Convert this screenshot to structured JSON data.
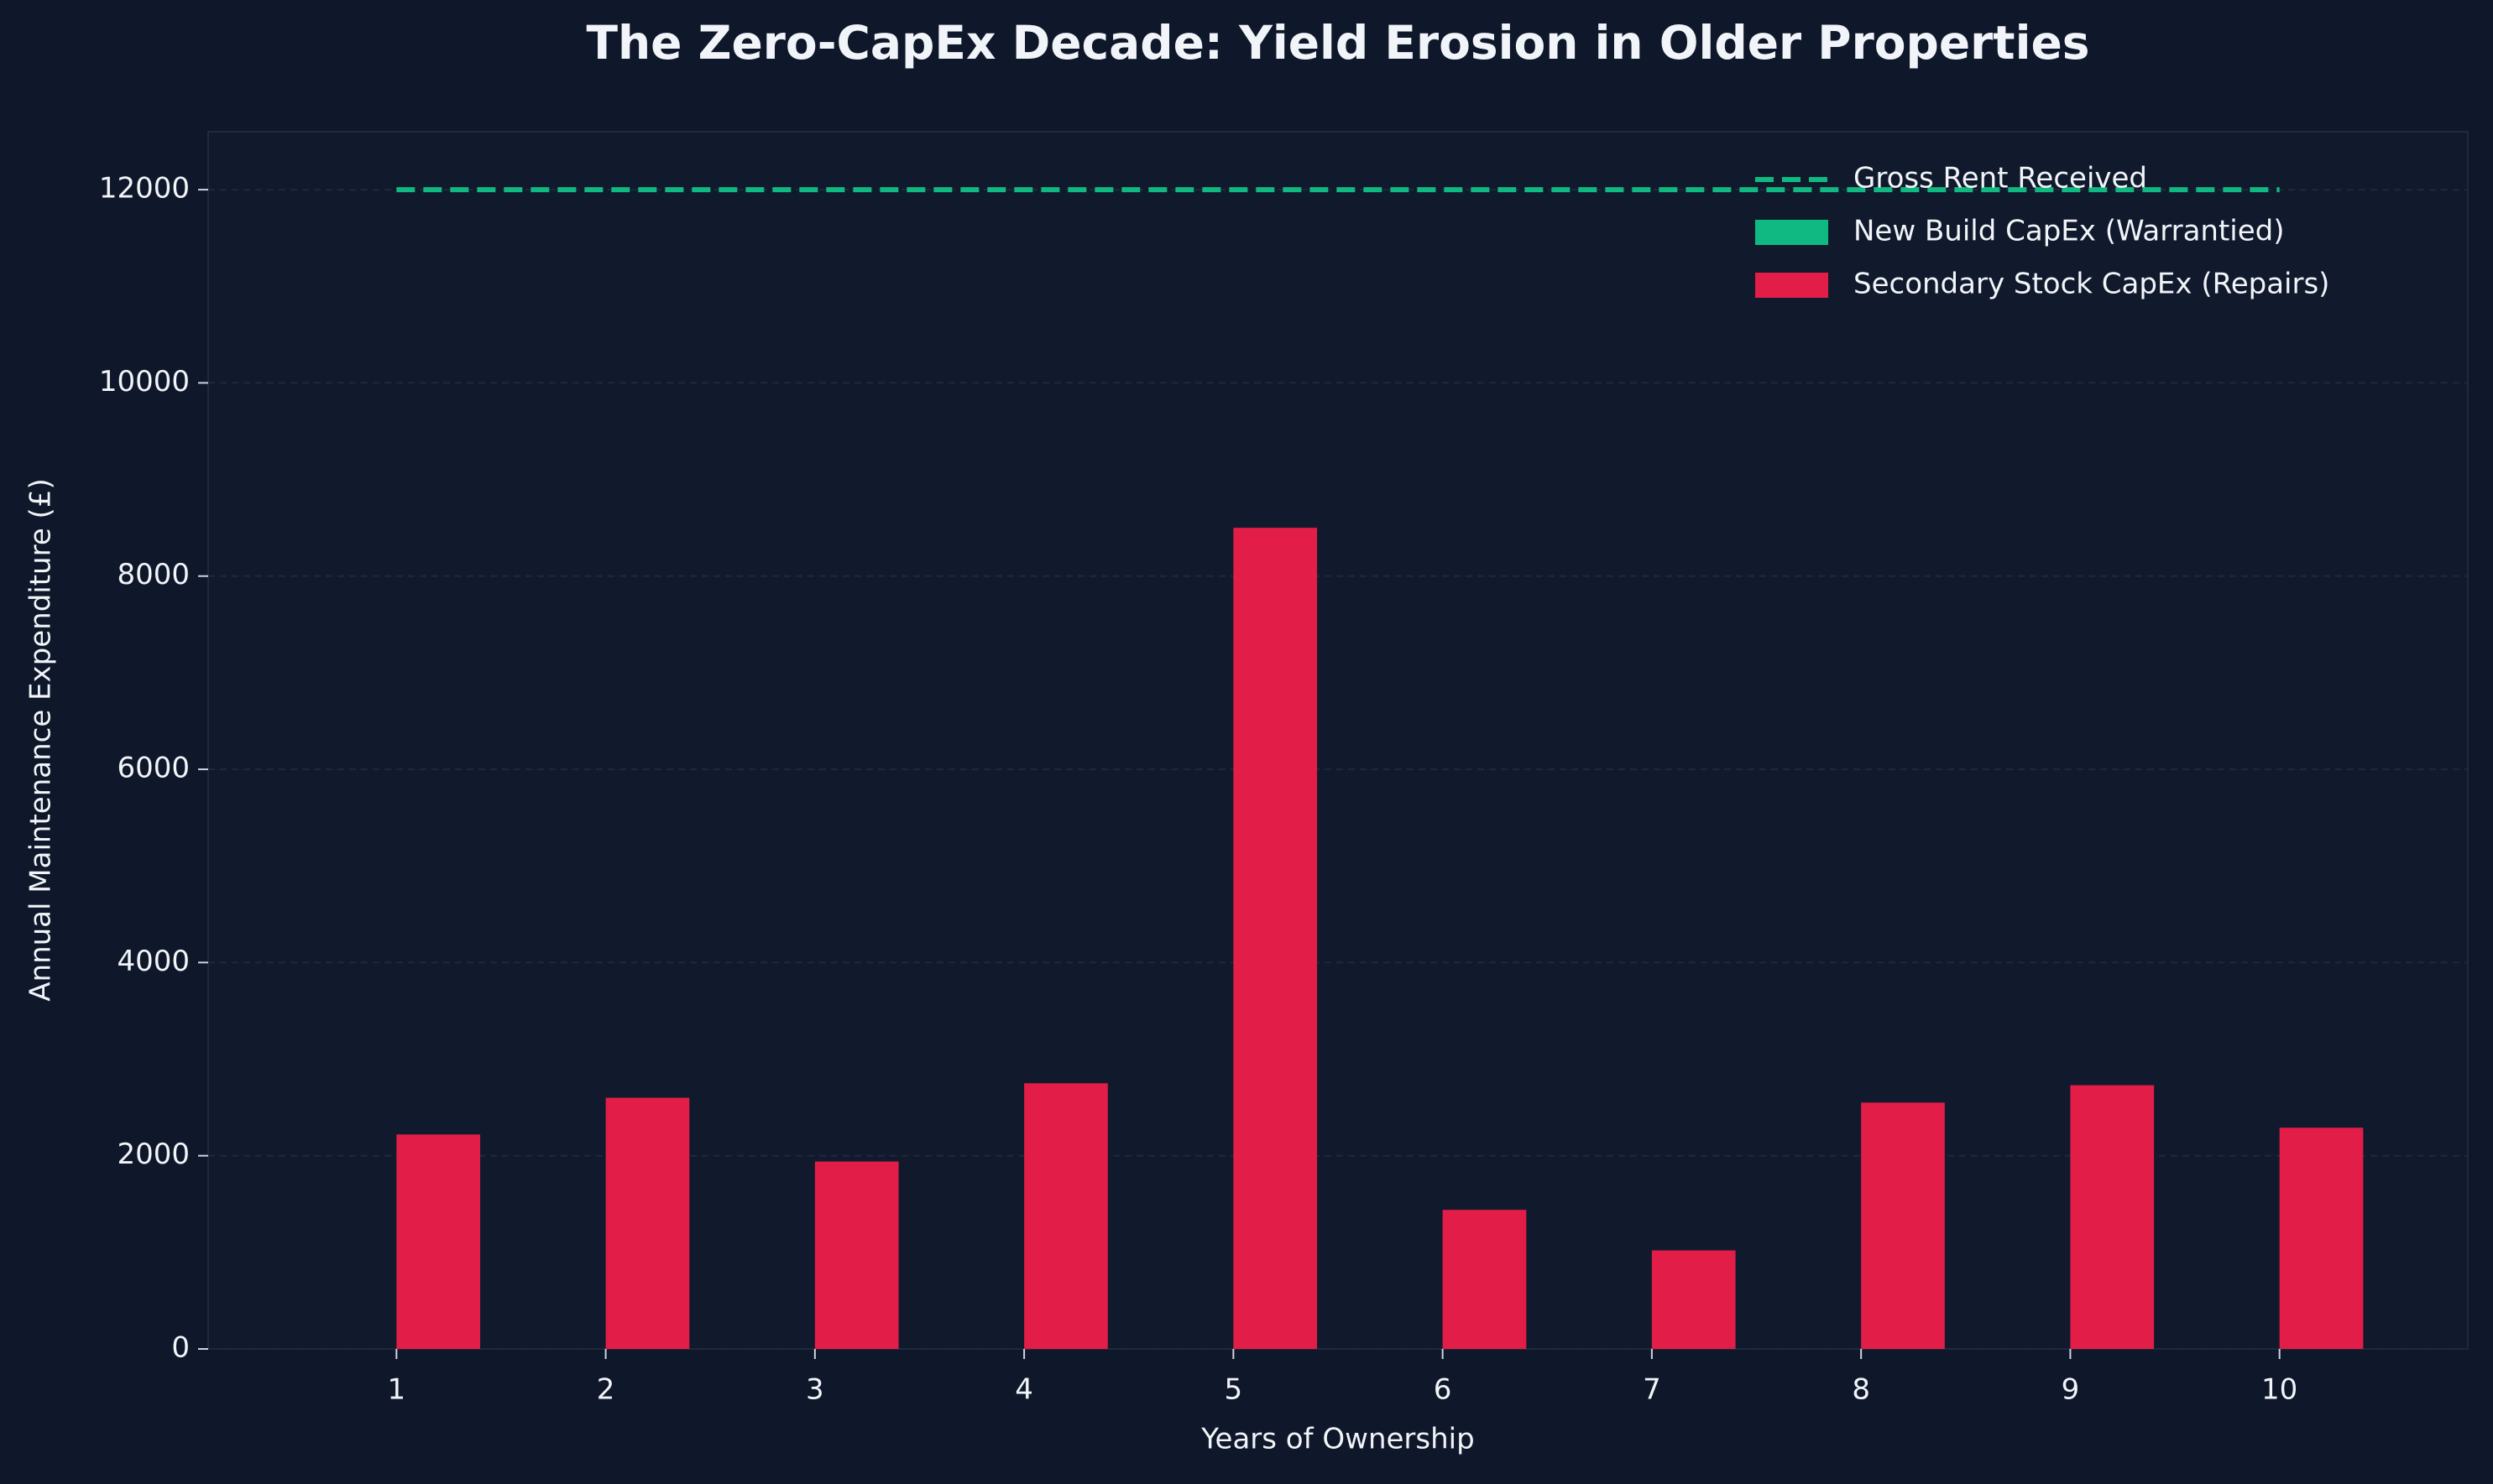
{
  "chart_data": {
    "type": "bar",
    "title": "The Zero-CapEx Decade: Yield Erosion in Older Properties",
    "x_label": "Years of Ownership",
    "y_label": "Annual Maintenance Expenditure (£)",
    "x": [
      1,
      2,
      3,
      4,
      5,
      6,
      7,
      8,
      9,
      10
    ],
    "series": [
      {
        "name": "Gross Rent Received",
        "type": "line",
        "color": "#10b981",
        "dashed": true,
        "values": [
          12000,
          12000,
          12000,
          12000,
          12000,
          12000,
          12000,
          12000,
          12000,
          12000
        ]
      },
      {
        "name": "New Build CapEx (Warrantied)",
        "type": "bar",
        "color": "#10b981",
        "values": [
          0,
          0,
          0,
          0,
          0,
          0,
          0,
          0,
          0,
          0
        ]
      },
      {
        "name": "Secondary Stock CapEx (Repairs)",
        "type": "bar",
        "color": "#e11d48",
        "values": [
          2220,
          2600,
          1940,
          2750,
          8500,
          1440,
          1020,
          2550,
          2730,
          2290
        ]
      }
    ],
    "xlim": [
      0.1,
      10.9
    ],
    "xticks": [
      1,
      2,
      3,
      4,
      5,
      6,
      7,
      8,
      9,
      10
    ],
    "ylim": [
      0,
      12600
    ],
    "yticks": [
      0,
      2000,
      4000,
      6000,
      8000,
      10000,
      12000
    ],
    "grid": true,
    "legend": "upper right"
  }
}
